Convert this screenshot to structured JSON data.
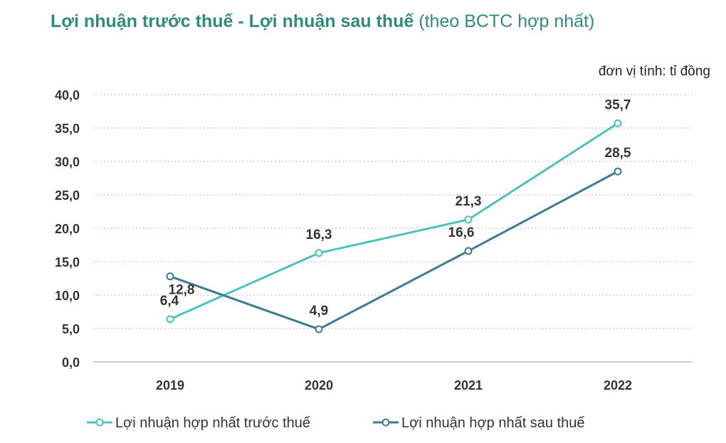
{
  "title": {
    "bold": "Lợi nhuận trước thuế - Lợi nhuận sau thuế",
    "light": "(theo BCTC hợp nhất)"
  },
  "unit": "đơn vị tính: tỉ đồng",
  "colors": {
    "series1": "#4cc3b9",
    "series2": "#3e7a91",
    "grid": "#c8c8c8",
    "title": "#2e8c7c"
  },
  "chart_data": {
    "type": "line",
    "title": "Lợi nhuận trước thuế - Lợi nhuận sau thuế (theo BCTC hợp nhất)",
    "categories": [
      "2019",
      "2020",
      "2021",
      "2022"
    ],
    "y_ticks": [
      "0,0",
      "5,0",
      "10,0",
      "15,0",
      "20,0",
      "25,0",
      "30,0",
      "35,0",
      "40,0"
    ],
    "ylim": [
      0,
      40
    ],
    "grid": true,
    "legend_position": "bottom",
    "series": [
      {
        "name": "Lợi nhuận hợp nhất trước thuế",
        "values": [
          6.4,
          16.3,
          21.3,
          35.7
        ],
        "labels": [
          "6,4",
          "16,3",
          "21,3",
          "35,7"
        ]
      },
      {
        "name": "Lợi nhuận hợp nhất sau thuế",
        "values": [
          12.8,
          4.9,
          16.6,
          28.5
        ],
        "labels": [
          "12,8",
          "4,9",
          "16,6",
          "28,5"
        ]
      }
    ]
  }
}
